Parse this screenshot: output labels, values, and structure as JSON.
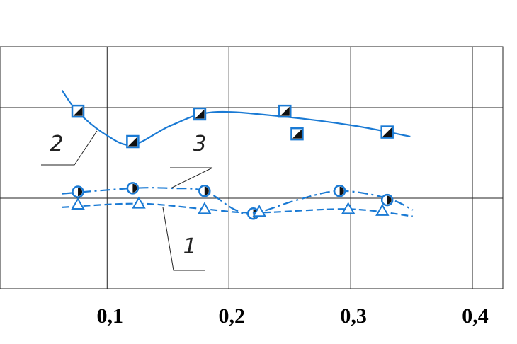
{
  "chart_data": {
    "type": "line",
    "xlim": [
      0.012,
      0.425
    ],
    "ylim": [
      0,
      2.672
    ],
    "xticks": [
      {
        "value": 0.1,
        "label": "0,1"
      },
      {
        "value": 0.2,
        "label": "0,2"
      },
      {
        "value": 0.3,
        "label": "0,3"
      },
      {
        "value": 0.4,
        "label": "0,4"
      }
    ],
    "ygrid": [
      1,
      2
    ],
    "series": [
      {
        "name": "2",
        "color": "#1a7ad4",
        "marker": "square",
        "dash": "solid",
        "x": [
          0.076,
          0.121,
          0.176,
          0.246,
          0.256,
          0.33
        ],
        "values": [
          1.96,
          1.625,
          1.93,
          1.96,
          1.71,
          1.73
        ],
        "curve_x": [
          0.063,
          0.076,
          0.099,
          0.121,
          0.152,
          0.187,
          0.245,
          0.303,
          0.349
        ],
        "curve_values": [
          2.19,
          1.95,
          1.7,
          1.59,
          1.8,
          1.95,
          1.9,
          1.8,
          1.68
        ]
      },
      {
        "name": "3",
        "color": "#1a7ad4",
        "marker": "half-circle",
        "dash": "dashdot",
        "x": [
          0.076,
          0.121,
          0.18,
          0.22,
          0.291,
          0.33
        ],
        "values": [
          1.07,
          1.11,
          1.08,
          0.83,
          1.08,
          0.98
        ],
        "curve_x": [
          0.063,
          0.121,
          0.152,
          0.18,
          0.204,
          0.22,
          0.256,
          0.291,
          0.33,
          0.351
        ],
        "curve_values": [
          1.05,
          1.11,
          1.11,
          1.08,
          0.88,
          0.83,
          0.98,
          1.08,
          1.0,
          0.87
        ]
      },
      {
        "name": "1",
        "color": "#1a7ad4",
        "marker": "triangle",
        "dash": "dashed",
        "x": [
          0.076,
          0.126,
          0.18,
          0.225,
          0.298,
          0.326
        ],
        "values": [
          0.93,
          0.94,
          0.88,
          0.85,
          0.88,
          0.86
        ],
        "curve_x": [
          0.063,
          0.126,
          0.18,
          0.221,
          0.298,
          0.351
        ],
        "curve_values": [
          0.9,
          0.94,
          0.88,
          0.84,
          0.88,
          0.8
        ]
      }
    ]
  }
}
